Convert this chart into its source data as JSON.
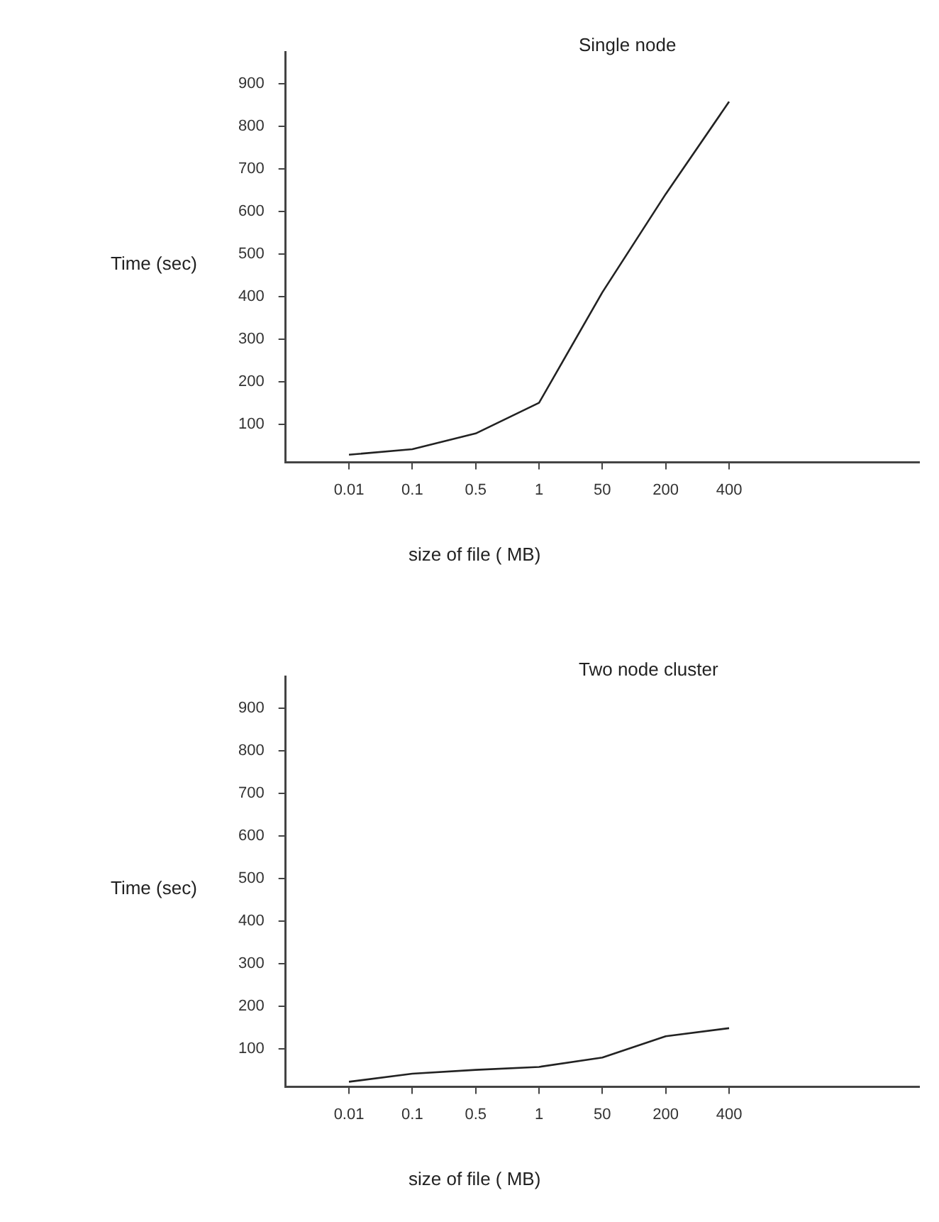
{
  "chart_data": [
    {
      "type": "line",
      "title": "Single node",
      "xlabel": "size of file ( MB)",
      "ylabel": "Time (sec)",
      "categories": [
        "0.01",
        "0.1",
        "0.5",
        "1",
        "50",
        "200",
        "400"
      ],
      "values": [
        28,
        41,
        78,
        150,
        410,
        641,
        858
      ],
      "color": "#222222",
      "ylim": [
        10,
        975
      ],
      "yticks": [
        100,
        200,
        300,
        400,
        500,
        600,
        700,
        800,
        900
      ],
      "grid": false,
      "marker": "none"
    },
    {
      "type": "line",
      "title": "Two node cluster",
      "xlabel": "size of file ( MB)",
      "ylabel": "Time (sec)",
      "categories": [
        "0.01",
        "0.1",
        "0.5",
        "1",
        "50",
        "200",
        "400"
      ],
      "values": [
        22,
        41,
        50,
        57,
        79,
        129,
        148
      ],
      "color": "#222222",
      "ylim": [
        10,
        975
      ],
      "yticks": [
        100,
        200,
        300,
        400,
        500,
        600,
        700,
        800,
        900
      ],
      "grid": false,
      "marker": "none"
    }
  ]
}
